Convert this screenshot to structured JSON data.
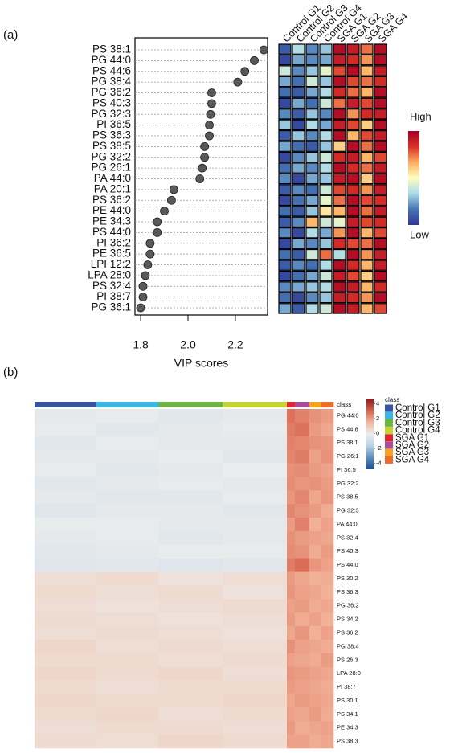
{
  "panel_labels": [
    "(a)",
    "(b)"
  ],
  "chart_data": [
    {
      "type": "dot",
      "xlabel": "VIP scores",
      "categories": [
        "PS 38:1",
        "PG 44:0",
        "PS 44:6",
        "PG 38:4",
        "PG 36:2",
        "PS 40:3",
        "PG 32:3",
        "PI 36:5",
        "PS 36:3",
        "PS 38:5",
        "PG 32:2",
        "PG 26:1",
        "PA 44:0",
        "PA 20:1",
        "PS 36:2",
        "PE 44:0",
        "PE 34:3",
        "PS 44:0",
        "PI 36:2",
        "PE 36:5",
        "LPI 12:2",
        "LPA 28:0",
        "PS 32:4",
        "PI 38:7",
        "PG 36:1"
      ],
      "values": [
        2.32,
        2.28,
        2.24,
        2.21,
        2.1,
        2.1,
        2.095,
        2.09,
        2.09,
        2.07,
        2.07,
        2.06,
        2.05,
        1.94,
        1.93,
        1.9,
        1.87,
        1.87,
        1.84,
        1.84,
        1.83,
        1.82,
        1.81,
        1.81,
        1.8
      ],
      "color": "#595959",
      "xlim": [
        1.776,
        2.336
      ],
      "xticks": [
        1.8,
        {
          "value": 2.0,
          "label": "2.0"
        },
        2.2
      ]
    },
    {
      "type": "heatmap",
      "columns": [
        "Control G1",
        "Control G2",
        "Control G3",
        "Control G4",
        "SGA G1",
        "SGA G2",
        "SGA G3",
        "SGA G4"
      ],
      "scale_labels": [
        "High",
        "Low"
      ],
      "vlim": [
        -1,
        1
      ],
      "colors": [
        "#313695",
        "#4575b4",
        "#abd9e9",
        "#ffffbf",
        "#fdae61",
        "#d73027",
        "#a50026"
      ],
      "values": [
        [
          -0.8,
          -0.3,
          -0.6,
          -0.4,
          0.9,
          0.8,
          0.5,
          0.9
        ],
        [
          -0.9,
          -0.5,
          -0.6,
          -0.5,
          0.8,
          0.7,
          0.4,
          0.9
        ],
        [
          -0.2,
          -0.6,
          -0.4,
          -0.1,
          0.6,
          0.9,
          0.3,
          0.8
        ],
        [
          -0.5,
          -0.7,
          -0.2,
          -0.4,
          0.9,
          0.6,
          0.5,
          0.7
        ],
        [
          -0.7,
          -0.8,
          -0.5,
          -0.3,
          0.7,
          0.5,
          0.3,
          0.9
        ],
        [
          -0.9,
          -0.5,
          -0.7,
          -0.2,
          0.5,
          0.8,
          0.6,
          0.9
        ],
        [
          -0.6,
          -0.8,
          -0.4,
          -0.6,
          0.9,
          0.4,
          0.7,
          0.8
        ],
        [
          -0.4,
          -0.9,
          -0.3,
          -0.5,
          0.8,
          0.6,
          0.2,
          0.9
        ],
        [
          -0.8,
          -0.4,
          -0.6,
          -0.3,
          0.9,
          0.3,
          0.6,
          0.8
        ],
        [
          -0.5,
          -0.7,
          -0.8,
          -0.4,
          0.2,
          0.9,
          0.5,
          0.9
        ],
        [
          -0.9,
          -0.6,
          -0.4,
          -0.2,
          0.7,
          0.8,
          0.3,
          0.6
        ],
        [
          -0.7,
          -0.5,
          -0.6,
          -0.3,
          0.9,
          0.7,
          0.5,
          0.8
        ],
        [
          -0.6,
          -0.9,
          -0.5,
          -0.4,
          0.8,
          0.9,
          0.2,
          0.9
        ],
        [
          -0.8,
          -0.6,
          -0.7,
          -0.2,
          0.6,
          0.7,
          0.4,
          0.8
        ],
        [
          -0.9,
          -0.7,
          -0.5,
          -0.1,
          0.5,
          0.9,
          0.6,
          0.7
        ],
        [
          -0.7,
          -0.8,
          -0.4,
          0.1,
          0.3,
          0.9,
          0.5,
          0.8
        ],
        [
          -0.8,
          -0.6,
          0.3,
          -0.2,
          -0.1,
          0.8,
          0.6,
          0.7
        ],
        [
          -0.6,
          -0.9,
          -0.3,
          -0.5,
          0.4,
          0.9,
          0.3,
          0.6
        ],
        [
          -0.9,
          -0.5,
          -0.6,
          -0.4,
          0.7,
          0.6,
          0.5,
          0.9
        ],
        [
          -0.7,
          -0.8,
          -0.2,
          0.5,
          -0.3,
          0.9,
          0.4,
          0.8
        ],
        [
          -0.8,
          -0.6,
          -0.7,
          -0.3,
          0.9,
          0.7,
          0.3,
          0.8
        ],
        [
          -0.9,
          -0.7,
          -0.5,
          -0.2,
          0.8,
          0.6,
          0.2,
          0.9
        ],
        [
          -0.6,
          -0.5,
          -0.4,
          -0.3,
          0.9,
          0.8,
          0.3,
          0.7
        ],
        [
          -0.7,
          -0.9,
          -0.6,
          -0.4,
          0.8,
          0.7,
          0.4,
          0.9
        ],
        [
          -0.5,
          -0.8,
          -0.3,
          -0.2,
          0.9,
          0.8,
          0.3,
          0.6
        ]
      ]
    },
    {
      "type": "heatmap-classes",
      "class_label": "class",
      "legend_title": "class",
      "classes": [
        {
          "name": "Control G1",
          "color": "#3953a4",
          "samples": 77
        },
        {
          "name": "Control G2",
          "color": "#38b6e8",
          "samples": 77
        },
        {
          "name": "Control G3",
          "color": "#6cb33f",
          "samples": 80
        },
        {
          "name": "Control G4",
          "color": "#c2d530",
          "samples": 80
        },
        {
          "name": "SGA G1",
          "color": "#e3262c",
          "samples": 10
        },
        {
          "name": "SGA G2",
          "color": "#a64d9c",
          "samples": 18
        },
        {
          "name": "SGA G3",
          "color": "#f6a21d",
          "samples": 15
        },
        {
          "name": "SGA G4",
          "color": "#ee6a2a",
          "samples": 15
        }
      ],
      "rows": [
        "PG 44:0",
        "PS 44:6",
        "PS 38:1",
        "PG 26:1",
        "PI 36:5",
        "PG 32:2",
        "PS 38:5",
        "PG 32:3",
        "PA 44:0",
        "PS 32:4",
        "PS 40:3",
        "PS 44:0",
        "PS 30:2",
        "PS 36:3",
        "PG 36:2",
        "PS 34:2",
        "PS 36:2",
        "PG 38:4",
        "PS 26:3",
        "LPA 28:0",
        "PI 38:7",
        "PS 30:1",
        "PS 34:1",
        "PE 34:3",
        "PS 38:3"
      ],
      "vlim": [
        -4.8,
        4.7
      ],
      "ticks": [
        4,
        2,
        0,
        -2,
        -4
      ],
      "colors": [
        "#1f4e8c",
        "#5b8fc4",
        "#b8d3e6",
        "#ededed",
        "#f2b59a",
        "#d6604d",
        "#8b1a1a"
      ],
      "values": [
        [
          -0.3,
          -0.2,
          -0.4,
          -0.3,
          2.8,
          2.5,
          2.2,
          2.0
        ],
        [
          -0.2,
          -0.4,
          -0.3,
          -0.2,
          2.6,
          2.8,
          2.0,
          1.8
        ],
        [
          -0.4,
          -0.2,
          -0.3,
          -0.3,
          2.5,
          2.4,
          2.2,
          2.1
        ],
        [
          -0.3,
          -0.3,
          -0.2,
          -0.4,
          2.4,
          2.6,
          1.9,
          2.2
        ],
        [
          -0.2,
          -0.4,
          -0.3,
          -0.1,
          2.2,
          2.3,
          2.0,
          1.9
        ],
        [
          -0.4,
          -0.3,
          -0.2,
          -0.3,
          2.3,
          2.1,
          2.2,
          2.0
        ],
        [
          -0.3,
          -0.4,
          -0.4,
          -0.2,
          2.1,
          2.4,
          1.8,
          2.1
        ],
        [
          -0.5,
          -0.3,
          -0.3,
          -0.4,
          2.4,
          2.2,
          2.0,
          1.7
        ],
        [
          -0.2,
          -0.2,
          -0.3,
          -0.3,
          2.0,
          2.5,
          1.6,
          1.9
        ],
        [
          -0.3,
          -0.2,
          -0.4,
          -0.3,
          2.2,
          2.0,
          1.9,
          1.8
        ],
        [
          -0.4,
          -0.3,
          -0.2,
          -0.2,
          2.3,
          2.2,
          1.7,
          2.0
        ],
        [
          -0.5,
          -0.4,
          -0.5,
          -0.4,
          2.6,
          2.9,
          2.1,
          1.9
        ],
        [
          0.4,
          0.5,
          0.3,
          0.4,
          2.0,
          1.8,
          1.6,
          1.7
        ],
        [
          0.5,
          0.4,
          0.5,
          0.3,
          2.1,
          1.9,
          1.8,
          1.6
        ],
        [
          0.4,
          0.3,
          0.4,
          0.5,
          1.9,
          2.0,
          1.7,
          1.8
        ],
        [
          0.5,
          0.4,
          0.3,
          0.4,
          2.0,
          1.7,
          1.9,
          1.6
        ],
        [
          0.4,
          0.5,
          0.4,
          0.3,
          1.8,
          2.1,
          1.6,
          1.9
        ],
        [
          0.6,
          0.4,
          0.5,
          0.4,
          2.2,
          1.9,
          1.8,
          1.7
        ],
        [
          0.5,
          0.5,
          0.4,
          0.5,
          1.9,
          1.8,
          1.7,
          2.0
        ],
        [
          0.6,
          0.5,
          0.6,
          0.4,
          2.1,
          2.0,
          1.9,
          1.8
        ],
        [
          0.5,
          0.4,
          0.5,
          0.5,
          2.0,
          1.9,
          1.8,
          1.7
        ],
        [
          0.6,
          0.5,
          0.5,
          0.6,
          1.8,
          2.0,
          1.9,
          1.8
        ],
        [
          0.5,
          0.6,
          0.4,
          0.5,
          1.9,
          1.8,
          2.0,
          1.7
        ],
        [
          0.4,
          0.5,
          0.5,
          0.4,
          2.0,
          1.7,
          1.8,
          1.9
        ],
        [
          0.5,
          0.4,
          0.6,
          0.5,
          1.9,
          1.9,
          1.7,
          1.8
        ]
      ]
    }
  ]
}
